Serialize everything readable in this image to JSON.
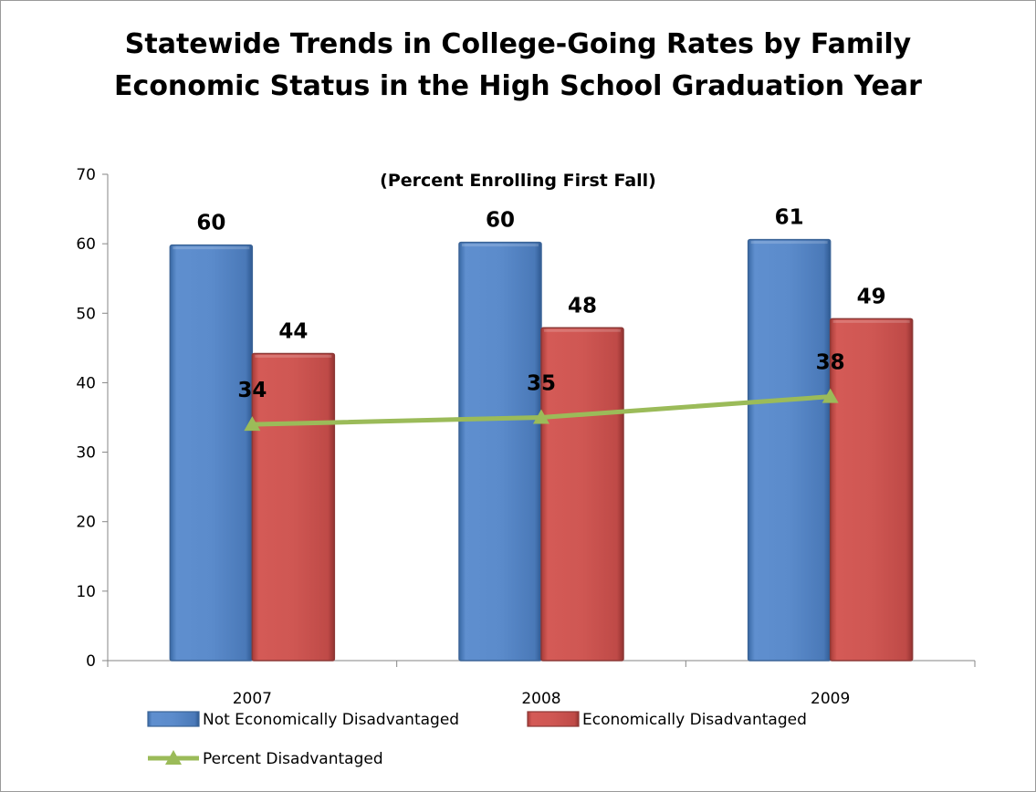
{
  "chart_data": {
    "type": "bar",
    "title": "Statewide Trends in College-Going Rates by Family Economic Status in the High School Graduation Year",
    "subtitle": "(Percent Enrolling First Fall)",
    "categories": [
      "2007",
      "2008",
      "2009"
    ],
    "series": [
      {
        "name": "Not Economically Disadvantaged",
        "type": "bar",
        "color": "#4f81bd",
        "values": [
          59.8,
          60.2,
          60.6
        ],
        "labels": [
          "60",
          "60",
          "61"
        ]
      },
      {
        "name": "Economically Disadvantaged",
        "type": "bar",
        "color": "#c0504d",
        "values": [
          44.2,
          47.9,
          49.2
        ],
        "labels": [
          "44",
          "48",
          "49"
        ]
      },
      {
        "name": "Percent Disadvantaged",
        "type": "line",
        "color": "#9bbb59",
        "values": [
          34,
          35,
          38
        ],
        "labels": [
          "34",
          "35",
          "38"
        ]
      }
    ],
    "ylim": [
      0,
      70
    ],
    "yticks": [
      "0",
      "10",
      "20",
      "30",
      "40",
      "50",
      "60",
      "70"
    ],
    "grid": false,
    "legend_position": "bottom"
  }
}
